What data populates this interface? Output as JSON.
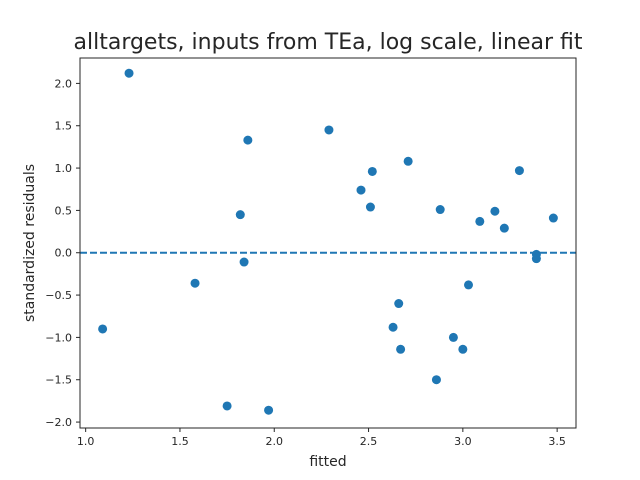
{
  "chart_data": {
    "type": "scatter",
    "title": "alltargets, inputs from TEa, log scale, linear fit",
    "xlabel": "fitted",
    "ylabel": "standardized residuals",
    "xlim": [
      0.97,
      3.6
    ],
    "ylim": [
      -2.07,
      2.3
    ],
    "xticks": [
      1.0,
      1.5,
      2.0,
      2.5,
      3.0,
      3.5
    ],
    "xtick_labels": [
      "1.0",
      "1.5",
      "2.0",
      "2.5",
      "3.0",
      "3.5"
    ],
    "yticks": [
      -2.0,
      -1.5,
      -1.0,
      -0.5,
      0.0,
      0.5,
      1.0,
      1.5,
      2.0
    ],
    "ytick_labels": [
      "−2.0",
      "−1.5",
      "−1.0",
      "−0.5",
      "0.0",
      "0.5",
      "1.0",
      "1.5",
      "2.0"
    ],
    "grid": false,
    "reference_line": {
      "y": 0.0,
      "style": "dashed",
      "color": "#1f77b4"
    },
    "marker_color": "#1f77b4",
    "points": [
      {
        "x": 1.09,
        "y": -0.9
      },
      {
        "x": 1.23,
        "y": 2.12
      },
      {
        "x": 1.58,
        "y": -0.36
      },
      {
        "x": 1.75,
        "y": -1.81
      },
      {
        "x": 1.82,
        "y": 0.45
      },
      {
        "x": 1.84,
        "y": -0.11
      },
      {
        "x": 1.86,
        "y": 1.33
      },
      {
        "x": 1.97,
        "y": -1.86
      },
      {
        "x": 2.29,
        "y": 1.45
      },
      {
        "x": 2.46,
        "y": 0.74
      },
      {
        "x": 2.51,
        "y": 0.54
      },
      {
        "x": 2.52,
        "y": 0.96
      },
      {
        "x": 2.63,
        "y": -0.88
      },
      {
        "x": 2.66,
        "y": -0.6
      },
      {
        "x": 2.67,
        "y": -1.14
      },
      {
        "x": 2.71,
        "y": 1.08
      },
      {
        "x": 2.86,
        "y": -1.5
      },
      {
        "x": 2.88,
        "y": 0.51
      },
      {
        "x": 2.95,
        "y": -1.0
      },
      {
        "x": 3.0,
        "y": -1.14
      },
      {
        "x": 3.03,
        "y": -0.38
      },
      {
        "x": 3.09,
        "y": 0.37
      },
      {
        "x": 3.17,
        "y": 0.49
      },
      {
        "x": 3.22,
        "y": 0.29
      },
      {
        "x": 3.3,
        "y": 0.97
      },
      {
        "x": 3.39,
        "y": -0.02
      },
      {
        "x": 3.39,
        "y": -0.07
      },
      {
        "x": 3.48,
        "y": 0.41
      }
    ]
  }
}
